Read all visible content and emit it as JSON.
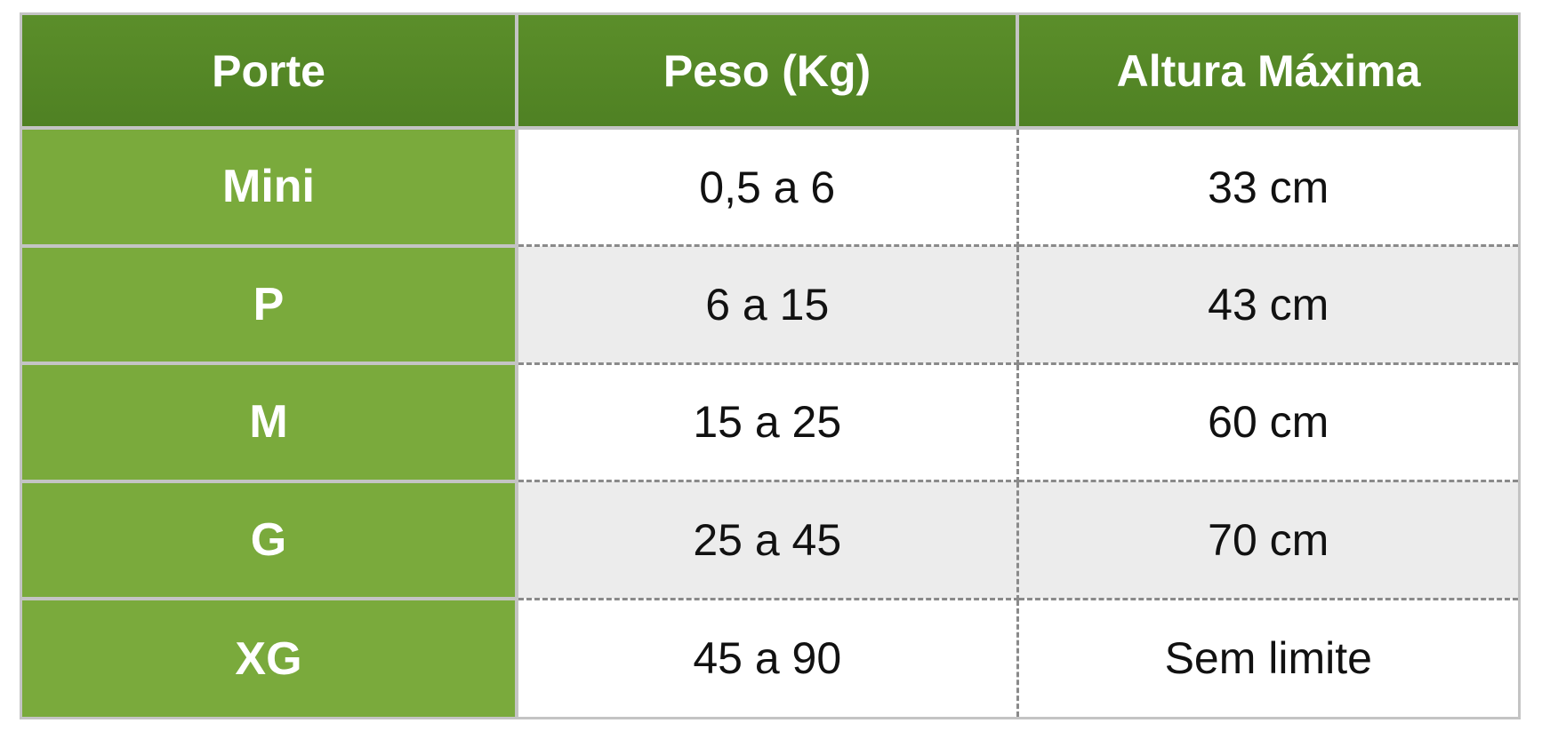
{
  "table": {
    "headers": [
      "Porte",
      "Peso (Kg)",
      "Altura Máxima"
    ],
    "rows": [
      {
        "porte": "Mini",
        "peso": "0,5 a 6",
        "altura": "33 cm"
      },
      {
        "porte": "P",
        "peso": "6 a 15",
        "altura": "43 cm"
      },
      {
        "porte": "M",
        "peso": "15 a 25",
        "altura": "60 cm"
      },
      {
        "porte": "G",
        "peso": "25 a 45",
        "altura": "70 cm"
      },
      {
        "porte": "XG",
        "peso": "45 a 90",
        "altura": "Sem limite"
      }
    ]
  },
  "colors": {
    "header_bg": "#548725",
    "label_bg": "#7aaa3c",
    "row_alt_bg": "#ececec",
    "border": "#c4c4c4"
  }
}
